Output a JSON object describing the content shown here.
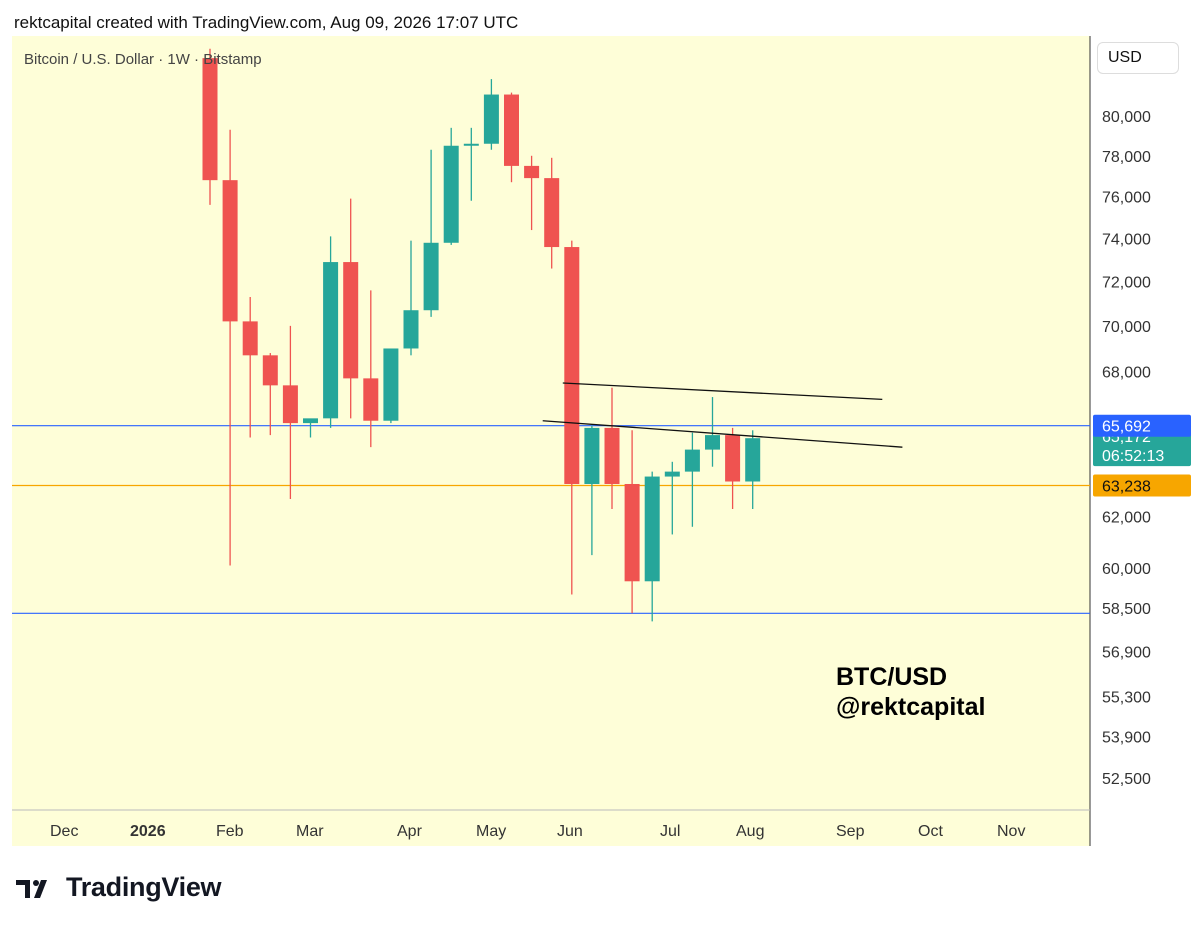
{
  "header": {
    "text": "rektcapital created with TradingView.com, Aug 09, 2026 17:07 UTC"
  },
  "symbol": "Bitcoin / U.S. Dollar · 1W · Bitstamp",
  "currency_button": "USD",
  "overlay": {
    "line1": "BTC/USD",
    "line2": "@rektcapital"
  },
  "brand": "TradingView",
  "colors": {
    "background": "#fefed8",
    "up": "#26a69a",
    "down": "#ef5350",
    "support": "#f7a600",
    "level": "#2962ff"
  },
  "chart_data": {
    "type": "candlestick",
    "interval": "1W",
    "x_axis_labels": [
      "Dec",
      "2026",
      "Feb",
      "Mar",
      "Apr",
      "May",
      "Jun",
      "Jul",
      "Aug",
      "Sep",
      "Oct",
      "Nov"
    ],
    "y_axis_labels": [
      "80,000",
      "78,000",
      "76,000",
      "74,000",
      "72,000",
      "70,000",
      "68,000",
      "62,000",
      "60,000",
      "58,500",
      "56,900",
      "55,300",
      "53,900",
      "52,500"
    ],
    "ylim": [
      51500,
      82500
    ],
    "candles": [
      {
        "open": 83000,
        "high": 83500,
        "low": 75600,
        "close": 76800
      },
      {
        "open": 76800,
        "high": 79300,
        "low": 60100,
        "close": 70200
      },
      {
        "open": 70200,
        "high": 71300,
        "low": 65200,
        "close": 68700
      },
      {
        "open": 68700,
        "high": 68800,
        "low": 65300,
        "close": 67400
      },
      {
        "open": 67400,
        "high": 70000,
        "low": 62700,
        "close": 65800
      },
      {
        "open": 65800,
        "high": 65900,
        "low": 65200,
        "close": 66000
      },
      {
        "open": 66000,
        "high": 74100,
        "low": 65600,
        "close": 72900
      },
      {
        "open": 72900,
        "high": 75900,
        "low": 66000,
        "close": 67700
      },
      {
        "open": 67700,
        "high": 71600,
        "low": 64800,
        "close": 65900
      },
      {
        "open": 65900,
        "high": 68800,
        "low": 65800,
        "close": 69000
      },
      {
        "open": 69000,
        "high": 73900,
        "low": 68700,
        "close": 70700
      },
      {
        "open": 70700,
        "high": 78300,
        "low": 70400,
        "close": 73800
      },
      {
        "open": 73800,
        "high": 79400,
        "low": 73700,
        "close": 78500
      },
      {
        "open": 78500,
        "high": 79400,
        "low": 75800,
        "close": 78600
      },
      {
        "open": 78600,
        "high": 81900,
        "low": 78300,
        "close": 81100
      },
      {
        "open": 81100,
        "high": 81200,
        "low": 76700,
        "close": 77500
      },
      {
        "open": 77500,
        "high": 78000,
        "low": 74400,
        "close": 76900
      },
      {
        "open": 76900,
        "high": 77900,
        "low": 72600,
        "close": 73600
      },
      {
        "open": 73600,
        "high": 73900,
        "low": 59000,
        "close": 63300
      },
      {
        "open": 63300,
        "high": 65700,
        "low": 60500,
        "close": 65600
      },
      {
        "open": 65600,
        "high": 67300,
        "low": 62300,
        "close": 63300
      },
      {
        "open": 63300,
        "high": 65500,
        "low": 58300,
        "close": 59500
      },
      {
        "open": 59500,
        "high": 63800,
        "low": 58000,
        "close": 63600
      },
      {
        "open": 63600,
        "high": 64200,
        "low": 61300,
        "close": 63800
      },
      {
        "open": 63800,
        "high": 65400,
        "low": 61600,
        "close": 64700
      },
      {
        "open": 64700,
        "high": 66900,
        "low": 64000,
        "close": 65300
      },
      {
        "open": 65300,
        "high": 65600,
        "low": 62300,
        "close": 63400
      },
      {
        "open": 63400,
        "high": 65500,
        "low": 62300,
        "close": 65172
      }
    ],
    "horizontal_lines": [
      {
        "value": 65692,
        "label": "65,692",
        "color": "#2962ff"
      },
      {
        "value": 63238,
        "label": "63,238",
        "color": "#f7a600"
      },
      {
        "value": 58300,
        "color": "#2962ff"
      }
    ],
    "trend_lines": [
      {
        "start_candle": 18,
        "start_value": 67500,
        "end_candle": 33,
        "end_value": 66800
      },
      {
        "start_candle": 17,
        "start_value": 65900,
        "end_candle": 34,
        "end_value": 64800
      }
    ],
    "last_price": {
      "value": 65172,
      "label": "65,172",
      "countdown": "06:52:13"
    }
  }
}
